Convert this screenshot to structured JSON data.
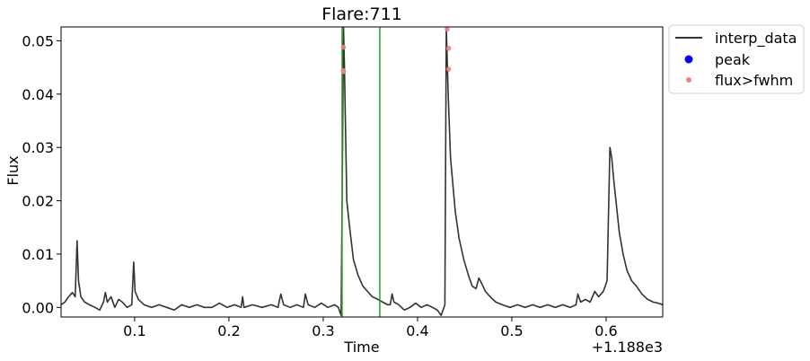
{
  "chart_data": {
    "type": "line",
    "title": "Flare:711",
    "xlabel": "Time",
    "ylabel": "Flux",
    "x_offset_label": "+1.188e3",
    "xlim": [
      0.022,
      0.66
    ],
    "ylim": [
      -0.0018,
      0.0526
    ],
    "x_ticks": [
      0.1,
      0.2,
      0.3,
      0.4,
      0.5,
      0.6
    ],
    "x_tick_labels": [
      "0.1",
      "0.2",
      "0.3",
      "0.4",
      "0.5",
      "0.6"
    ],
    "y_ticks": [
      0.0,
      0.01,
      0.02,
      0.03,
      0.04,
      0.05
    ],
    "y_tick_labels": [
      "0.00",
      "0.01",
      "0.02",
      "0.03",
      "0.04",
      "0.05"
    ],
    "grid": false,
    "legend_placement": "outside-top-right",
    "colors": {
      "line": "#333333",
      "peak": "#0000ff",
      "flux_gt_fwhm": "#f08080",
      "vline": "#2ca02c"
    },
    "vertical_lines": [
      0.32,
      0.36
    ],
    "series": [
      {
        "name": "interp_data",
        "kind": "line",
        "points": [
          [
            0.022,
            0.0005
          ],
          [
            0.026,
            0.001
          ],
          [
            0.03,
            0.002
          ],
          [
            0.034,
            0.0028
          ],
          [
            0.037,
            0.002
          ],
          [
            0.039,
            0.0125
          ],
          [
            0.0405,
            0.005
          ],
          [
            0.043,
            0.002
          ],
          [
            0.047,
            0.001
          ],
          [
            0.052,
            0.0005
          ],
          [
            0.058,
            0.0
          ],
          [
            0.063,
            -0.0005
          ],
          [
            0.067,
            0.001
          ],
          [
            0.069,
            0.0028
          ],
          [
            0.071,
            0.001
          ],
          [
            0.075,
            0.002
          ],
          [
            0.079,
            0.0
          ],
          [
            0.083,
            0.0015
          ],
          [
            0.087,
            0.001
          ],
          [
            0.092,
            0.0
          ],
          [
            0.097,
            0.0005
          ],
          [
            0.099,
            0.0085
          ],
          [
            0.1005,
            0.003
          ],
          [
            0.104,
            0.0015
          ],
          [
            0.11,
            0.0005
          ],
          [
            0.118,
            0.0
          ],
          [
            0.126,
            0.0005
          ],
          [
            0.134,
            0.0
          ],
          [
            0.142,
            -0.0005
          ],
          [
            0.15,
            0.0005
          ],
          [
            0.158,
            0.0
          ],
          [
            0.166,
            0.0005
          ],
          [
            0.174,
            0.0
          ],
          [
            0.182,
            0.0
          ],
          [
            0.19,
            0.0008
          ],
          [
            0.198,
            0.0
          ],
          [
            0.206,
            0.0005
          ],
          [
            0.213,
            0.0
          ],
          [
            0.2145,
            0.002
          ],
          [
            0.216,
            0.0
          ],
          [
            0.225,
            0.0005
          ],
          [
            0.235,
            0.0
          ],
          [
            0.245,
            0.0005
          ],
          [
            0.252,
            0.0
          ],
          [
            0.255,
            0.0025
          ],
          [
            0.258,
            0.0005
          ],
          [
            0.265,
            0.0
          ],
          [
            0.272,
            0.0005
          ],
          [
            0.279,
            0.0
          ],
          [
            0.281,
            0.0025
          ],
          [
            0.284,
            0.0005
          ],
          [
            0.291,
            0.0
          ],
          [
            0.298,
            0.0008
          ],
          [
            0.305,
            0.0
          ],
          [
            0.312,
            0.0005
          ],
          [
            0.316,
            0.0
          ],
          [
            0.319,
            -0.0015
          ],
          [
            0.3205,
            0.03
          ],
          [
            0.3215,
            0.0526
          ],
          [
            0.3225,
            0.045
          ],
          [
            0.325,
            0.02
          ],
          [
            0.328,
            0.015
          ],
          [
            0.332,
            0.009
          ],
          [
            0.337,
            0.006
          ],
          [
            0.342,
            0.004
          ],
          [
            0.347,
            0.003
          ],
          [
            0.352,
            0.002
          ],
          [
            0.358,
            0.0015
          ],
          [
            0.363,
            0.001
          ],
          [
            0.368,
            0.0005
          ],
          [
            0.371,
            0.0005
          ],
          [
            0.373,
            0.0025
          ],
          [
            0.375,
            0.001
          ],
          [
            0.38,
            0.0005
          ],
          [
            0.386,
            -0.0005
          ],
          [
            0.392,
            0.0
          ],
          [
            0.398,
            0.0008
          ],
          [
            0.404,
            0.0
          ],
          [
            0.41,
            0.0005
          ],
          [
            0.416,
            0.0
          ],
          [
            0.421,
            -0.0005
          ],
          [
            0.425,
            -0.0015
          ],
          [
            0.429,
            0.0005
          ],
          [
            0.4305,
            0.0526
          ],
          [
            0.4325,
            0.04
          ],
          [
            0.435,
            0.028
          ],
          [
            0.437,
            0.024
          ],
          [
            0.44,
            0.018
          ],
          [
            0.444,
            0.013
          ],
          [
            0.449,
            0.009
          ],
          [
            0.454,
            0.006
          ],
          [
            0.458,
            0.004
          ],
          [
            0.462,
            0.0035
          ],
          [
            0.465,
            0.0055
          ],
          [
            0.468,
            0.0045
          ],
          [
            0.472,
            0.003
          ],
          [
            0.477,
            0.002
          ],
          [
            0.483,
            0.001
          ],
          [
            0.49,
            0.0005
          ],
          [
            0.498,
            0.0
          ],
          [
            0.506,
            0.0005
          ],
          [
            0.514,
            0.0
          ],
          [
            0.522,
            0.0005
          ],
          [
            0.53,
            0.0
          ],
          [
            0.538,
            0.0005
          ],
          [
            0.546,
            0.0
          ],
          [
            0.554,
            0.0005
          ],
          [
            0.562,
            0.0
          ],
          [
            0.568,
            0.0005
          ],
          [
            0.57,
            0.0025
          ],
          [
            0.573,
            0.001
          ],
          [
            0.578,
            0.0015
          ],
          [
            0.583,
            0.001
          ],
          [
            0.588,
            0.003
          ],
          [
            0.592,
            0.002
          ],
          [
            0.597,
            0.003
          ],
          [
            0.601,
            0.005
          ],
          [
            0.604,
            0.03
          ],
          [
            0.606,
            0.028
          ],
          [
            0.608,
            0.024
          ],
          [
            0.611,
            0.019
          ],
          [
            0.614,
            0.014
          ],
          [
            0.618,
            0.01
          ],
          [
            0.622,
            0.007
          ],
          [
            0.627,
            0.005
          ],
          [
            0.632,
            0.004
          ],
          [
            0.638,
            0.0025
          ],
          [
            0.644,
            0.0015
          ],
          [
            0.65,
            0.001
          ],
          [
            0.655,
            0.0008
          ],
          [
            0.66,
            0.0005
          ]
        ]
      },
      {
        "name": "peak",
        "kind": "scatter",
        "points": []
      },
      {
        "name": "flux>fwhm",
        "kind": "scatter",
        "points": [
          [
            0.3215,
            0.0488
          ],
          [
            0.3212,
            0.0444
          ],
          [
            0.3218,
            0.0442
          ],
          [
            0.4315,
            0.0522
          ],
          [
            0.433,
            0.0486
          ],
          [
            0.433,
            0.0447
          ]
        ]
      }
    ]
  }
}
